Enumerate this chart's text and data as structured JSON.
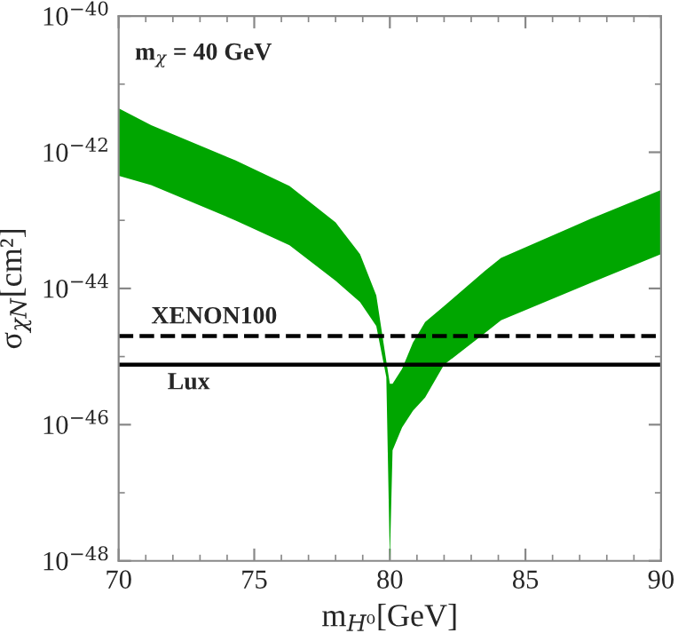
{
  "chart_data": {
    "type": "area",
    "xlabel": "m$_{H⁰}$[GeV]",
    "ylabel": "σ$_{χN}$[cm²]",
    "annotations": [
      "m$_{χ}$ = 40 GeV"
    ],
    "x": [
      70,
      71.2,
      74.3,
      76.3,
      78.0,
      78.9,
      79.5,
      79.87,
      80.0,
      80.1,
      80.45,
      80.85,
      81.3,
      82.0,
      83.5,
      84.1,
      87.4,
      90
    ],
    "series": [
      {
        "color": "#00a600",
        "values": [
          null,
          null,
          null,
          null,
          null,
          null,
          null,
          null,
          null,
          null,
          null,
          null,
          null,
          null,
          null,
          null,
          null,
          null
        ],
        "upper": [
          4.4e-42,
          2.5e-42,
          7.6e-43,
          3.2e-43,
          9.3e-44,
          3.2e-44,
          7.9e-45,
          8.5e-46,
          4e-46,
          4e-46,
          6.6e-46,
          1.6e-45,
          3.2e-45,
          5.5e-45,
          1.8e-44,
          2.8e-44,
          1.05e-43,
          2.8e-43
        ],
        "lower": [
          4.5e-43,
          3.3e-43,
          1e-43,
          4.3e-44,
          1.3e-44,
          6.3e-45,
          2.8e-45,
          5e-46,
          1e-48,
          4.2e-47,
          9.1e-47,
          1.6e-46,
          2.5e-46,
          7.6e-46,
          2.2e-45,
          3.4e-45,
          1.2e-44,
          3.2e-44
        ]
      }
    ],
    "ref_lines": [
      {
        "axis": "y",
        "value": 2e-45,
        "label": "XENON100",
        "color": "#000000",
        "line_style": "dashed"
      },
      {
        "axis": "y",
        "value": 7.6e-46,
        "label": "Lux",
        "color": "#000000",
        "line_style": "solid"
      }
    ],
    "log": "y",
    "xlim": [
      70,
      90
    ],
    "xticks": [
      70,
      75,
      80,
      85,
      90
    ],
    "ylim": [
      1e-48,
      1e-40
    ],
    "yticks": [
      {
        "value": 1e-48,
        "label": "10$^{−48}$"
      },
      {
        "value": 1e-46,
        "label": "10$^{−46}$"
      },
      {
        "value": 1e-44,
        "label": "10$^{−44}$"
      },
      {
        "value": 1e-42,
        "label": "10$^{−42}$"
      },
      {
        "value": 1e-40,
        "label": "10$^{−40}$"
      }
    ],
    "grid": false,
    "legend": false
  }
}
